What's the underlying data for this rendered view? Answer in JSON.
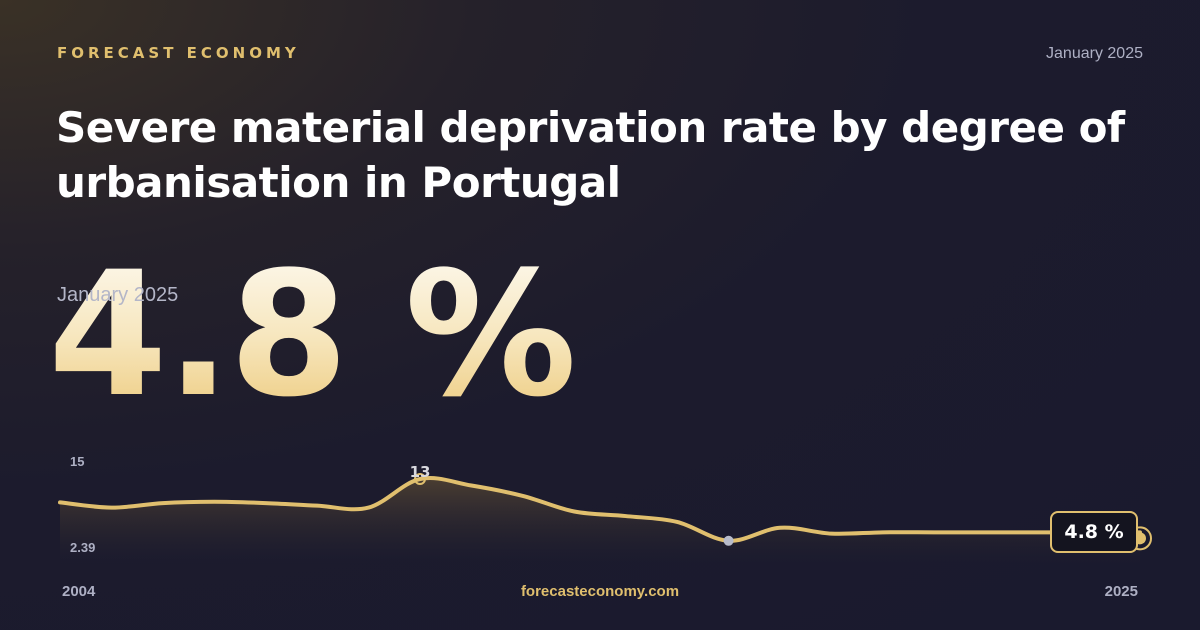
{
  "header": {
    "brand": "FORECAST ECONOMY",
    "date": "January 2025"
  },
  "title": "Severe material deprivation rate by degree of urbanisation in Portugal",
  "headline": {
    "value": "4.8 %",
    "date": "January 2025"
  },
  "footer": {
    "url": "forecasteconomy.com"
  },
  "colors": {
    "accent": "#e0bf6e",
    "background": "#1a1a2e",
    "min_marker": "#b8bccb"
  },
  "chart_data": {
    "type": "area",
    "x": [
      2004,
      2005,
      2006,
      2007,
      2008,
      2009,
      2010,
      2011,
      2012,
      2013,
      2014,
      2015,
      2016,
      2017,
      2018,
      2019,
      2020,
      2021,
      2022,
      2023,
      2024,
      2025
    ],
    "values": [
      9.4,
      8.6,
      9.3,
      9.5,
      9.3,
      8.9,
      8.6,
      13.0,
      12.0,
      10.4,
      8.0,
      7.3,
      6.4,
      3.5,
      5.5,
      4.6,
      4.8,
      4.8,
      4.8,
      4.8,
      4.8,
      4.8
    ],
    "yticks": [
      "15",
      "2.39"
    ],
    "ylim": [
      2.39,
      15
    ],
    "xlabels": [
      "2004",
      "2025"
    ],
    "annotations": {
      "peak_label": "13",
      "last_label": "4.8 %"
    },
    "title": "",
    "xlabel": "",
    "ylabel": "",
    "grid": false,
    "legend": false
  }
}
